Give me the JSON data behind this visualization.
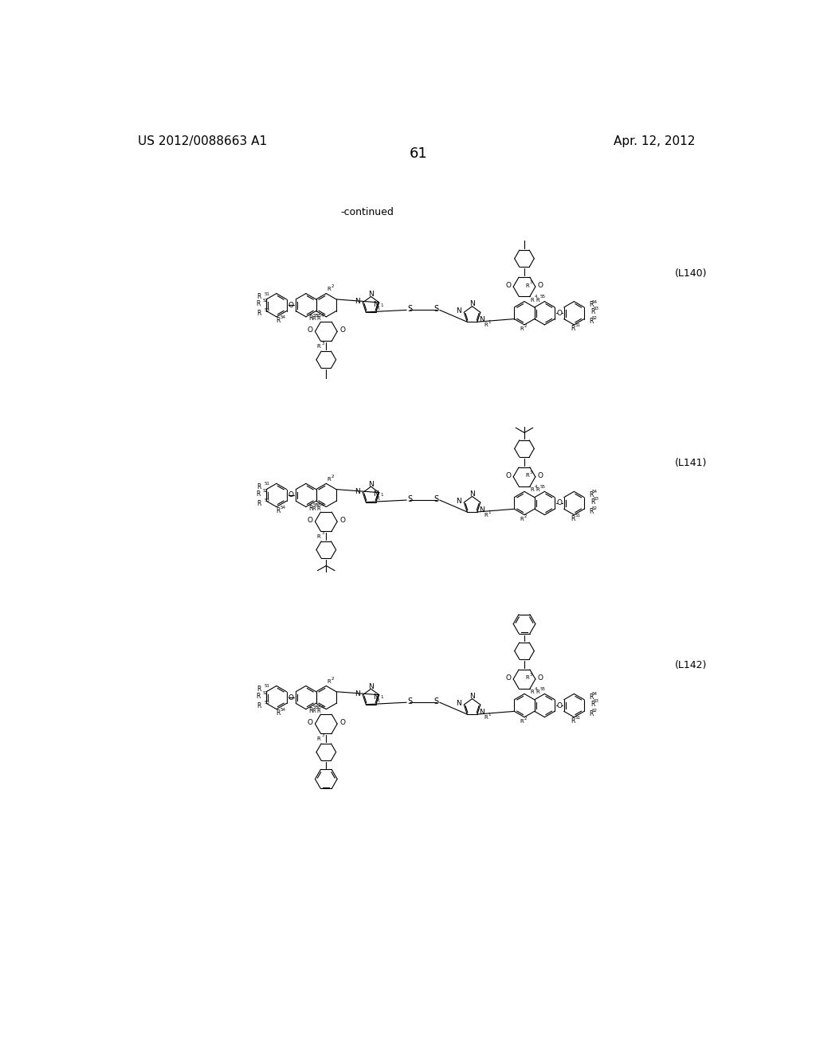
{
  "page_header_left": "US 2012/0088663 A1",
  "page_header_right": "Apr. 12, 2012",
  "page_number": "61",
  "continued_label": "-continued",
  "labels": [
    "(L140)",
    "(L141)",
    "(L142)"
  ],
  "background_color": "#ffffff",
  "text_color": "#000000",
  "line_color": "#000000",
  "font_size_header": 11,
  "font_size_page": 13,
  "font_size_label": 9,
  "font_size_atom": 7,
  "font_size_superscript": 5
}
